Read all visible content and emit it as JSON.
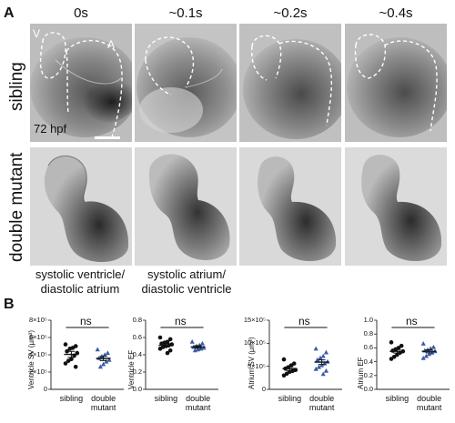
{
  "panel_a": {
    "label": "A",
    "time_headers": [
      "0s",
      "~0.1s",
      "~0.2s",
      "~0.4s"
    ],
    "row_labels": [
      "sibling",
      "double mutant"
    ],
    "stage_label": "72 hpf",
    "chamber_labels": {
      "ventricle": "V",
      "atrium": "A"
    },
    "captions": [
      {
        "line1": "systolic ventricle/",
        "line2": "diastolic atrium"
      },
      {
        "line1": "systolic atrium/",
        "line2": "diastolic ventricle"
      }
    ]
  },
  "panel_b": {
    "label": "B"
  },
  "chart_data": [
    {
      "type": "scatter",
      "ylabel": "Ventricle SV (µm³)",
      "yticks": [
        "8×10⁵",
        "6×10⁵",
        "4×10⁵",
        "2×10⁵",
        "0"
      ],
      "ylim": [
        0,
        800000
      ],
      "categories": [
        "sibling",
        "double mutant"
      ],
      "significance": "ns",
      "series": [
        {
          "name": "sibling",
          "color": "#111111",
          "marker": "circle",
          "values": [
            520000,
            500000,
            480000,
            470000,
            440000,
            420000,
            390000,
            350000,
            330000,
            300000,
            260000
          ],
          "mean": 405000,
          "sem": 35000
        },
        {
          "name": "double mutant",
          "color": "#3b5da8",
          "marker": "triangle",
          "values": [
            460000,
            420000,
            400000,
            380000,
            360000,
            340000,
            320000,
            290000,
            260000
          ],
          "mean": 358000,
          "sem": 25000
        }
      ]
    },
    {
      "type": "scatter",
      "ylabel": "Ventricle EF",
      "yticks": [
        "0.8",
        "0.6",
        "0.4",
        "0.2",
        "0.0"
      ],
      "ylim": [
        0,
        0.8
      ],
      "categories": [
        "sibling",
        "double mutant"
      ],
      "significance": "ns",
      "series": [
        {
          "name": "sibling",
          "color": "#111111",
          "marker": "circle",
          "values": [
            0.6,
            0.58,
            0.55,
            0.54,
            0.53,
            0.52,
            0.51,
            0.5,
            0.49,
            0.47,
            0.45,
            0.42
          ],
          "mean": 0.51,
          "sem": 0.02
        },
        {
          "name": "double mutant",
          "color": "#3b5da8",
          "marker": "triangle",
          "values": [
            0.55,
            0.53,
            0.51,
            0.5,
            0.49,
            0.48,
            0.47,
            0.46,
            0.45
          ],
          "mean": 0.49,
          "sem": 0.015
        }
      ]
    },
    {
      "type": "scatter",
      "ylabel": "Atrium SV (µm³)",
      "yticks": [
        "15×10⁵",
        "10×10⁵",
        "5×10⁵",
        "0"
      ],
      "ylim": [
        0,
        1500000
      ],
      "categories": [
        "sibling",
        "double mutant"
      ],
      "significance": "ns",
      "series": [
        {
          "name": "sibling",
          "color": "#111111",
          "marker": "circle",
          "values": [
            650000,
            560000,
            520000,
            480000,
            450000,
            420000,
            400000,
            380000,
            340000,
            300000
          ],
          "mean": 450000,
          "sem": 40000
        },
        {
          "name": "double mutant",
          "color": "#3b5da8",
          "marker": "triangle",
          "values": [
            880000,
            800000,
            720000,
            680000,
            640000,
            600000,
            560000,
            520000,
            480000,
            440000,
            400000,
            330000
          ],
          "mean": 590000,
          "sem": 50000
        }
      ]
    },
    {
      "type": "scatter",
      "ylabel": "Atrium EF",
      "yticks": [
        "1.0",
        "0.8",
        "0.6",
        "0.4",
        "0.2",
        "0.0"
      ],
      "ylim": [
        0,
        1.0
      ],
      "categories": [
        "sibling",
        "double mutant"
      ],
      "significance": "ns",
      "series": [
        {
          "name": "sibling",
          "color": "#111111",
          "marker": "circle",
          "values": [
            0.68,
            0.63,
            0.6,
            0.58,
            0.56,
            0.55,
            0.53,
            0.5,
            0.47,
            0.44
          ],
          "mean": 0.55,
          "sem": 0.025
        },
        {
          "name": "double mutant",
          "color": "#3b5da8",
          "marker": "triangle",
          "values": [
            0.66,
            0.61,
            0.59,
            0.57,
            0.56,
            0.55,
            0.53,
            0.51,
            0.48,
            0.45
          ],
          "mean": 0.55,
          "sem": 0.022
        }
      ]
    }
  ]
}
